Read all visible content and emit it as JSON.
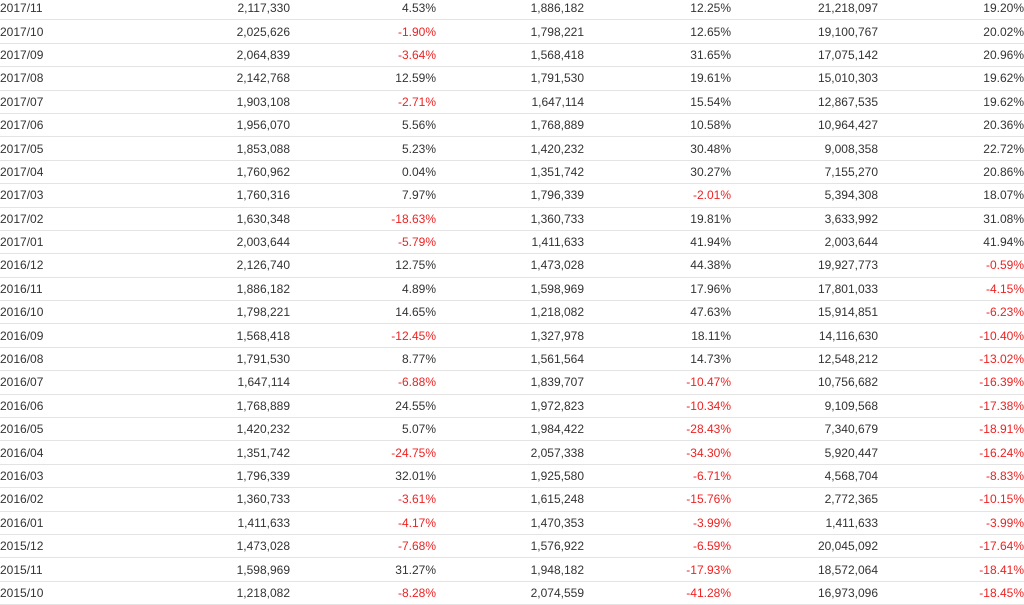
{
  "colors": {
    "text": "#333333",
    "negative": "#ee2222",
    "row_border": "#e3e3e3"
  },
  "rows": [
    [
      "2017/11",
      "2,117,330",
      "4.53%",
      "1,886,182",
      "12.25%",
      "21,218,097",
      "19.20%"
    ],
    [
      "2017/10",
      "2,025,626",
      "-1.90%",
      "1,798,221",
      "12.65%",
      "19,100,767",
      "20.02%"
    ],
    [
      "2017/09",
      "2,064,839",
      "-3.64%",
      "1,568,418",
      "31.65%",
      "17,075,142",
      "20.96%"
    ],
    [
      "2017/08",
      "2,142,768",
      "12.59%",
      "1,791,530",
      "19.61%",
      "15,010,303",
      "19.62%"
    ],
    [
      "2017/07",
      "1,903,108",
      "-2.71%",
      "1,647,114",
      "15.54%",
      "12,867,535",
      "19.62%"
    ],
    [
      "2017/06",
      "1,956,070",
      "5.56%",
      "1,768,889",
      "10.58%",
      "10,964,427",
      "20.36%"
    ],
    [
      "2017/05",
      "1,853,088",
      "5.23%",
      "1,420,232",
      "30.48%",
      "9,008,358",
      "22.72%"
    ],
    [
      "2017/04",
      "1,760,962",
      "0.04%",
      "1,351,742",
      "30.27%",
      "7,155,270",
      "20.86%"
    ],
    [
      "2017/03",
      "1,760,316",
      "7.97%",
      "1,796,339",
      "-2.01%",
      "5,394,308",
      "18.07%"
    ],
    [
      "2017/02",
      "1,630,348",
      "-18.63%",
      "1,360,733",
      "19.81%",
      "3,633,992",
      "31.08%"
    ],
    [
      "2017/01",
      "2,003,644",
      "-5.79%",
      "1,411,633",
      "41.94%",
      "2,003,644",
      "41.94%"
    ],
    [
      "2016/12",
      "2,126,740",
      "12.75%",
      "1,473,028",
      "44.38%",
      "19,927,773",
      "-0.59%"
    ],
    [
      "2016/11",
      "1,886,182",
      "4.89%",
      "1,598,969",
      "17.96%",
      "17,801,033",
      "-4.15%"
    ],
    [
      "2016/10",
      "1,798,221",
      "14.65%",
      "1,218,082",
      "47.63%",
      "15,914,851",
      "-6.23%"
    ],
    [
      "2016/09",
      "1,568,418",
      "-12.45%",
      "1,327,978",
      "18.11%",
      "14,116,630",
      "-10.40%"
    ],
    [
      "2016/08",
      "1,791,530",
      "8.77%",
      "1,561,564",
      "14.73%",
      "12,548,212",
      "-13.02%"
    ],
    [
      "2016/07",
      "1,647,114",
      "-6.88%",
      "1,839,707",
      "-10.47%",
      "10,756,682",
      "-16.39%"
    ],
    [
      "2016/06",
      "1,768,889",
      "24.55%",
      "1,972,823",
      "-10.34%",
      "9,109,568",
      "-17.38%"
    ],
    [
      "2016/05",
      "1,420,232",
      "5.07%",
      "1,984,422",
      "-28.43%",
      "7,340,679",
      "-18.91%"
    ],
    [
      "2016/04",
      "1,351,742",
      "-24.75%",
      "2,057,338",
      "-34.30%",
      "5,920,447",
      "-16.24%"
    ],
    [
      "2016/03",
      "1,796,339",
      "32.01%",
      "1,925,580",
      "-6.71%",
      "4,568,704",
      "-8.83%"
    ],
    [
      "2016/02",
      "1,360,733",
      "-3.61%",
      "1,615,248",
      "-15.76%",
      "2,772,365",
      "-10.15%"
    ],
    [
      "2016/01",
      "1,411,633",
      "-4.17%",
      "1,470,353",
      "-3.99%",
      "1,411,633",
      "-3.99%"
    ],
    [
      "2015/12",
      "1,473,028",
      "-7.68%",
      "1,576,922",
      "-6.59%",
      "20,045,092",
      "-17.64%"
    ],
    [
      "2015/11",
      "1,598,969",
      "31.27%",
      "1,948,182",
      "-17.93%",
      "18,572,064",
      "-18.41%"
    ],
    [
      "2015/10",
      "1,218,082",
      "-8.28%",
      "2,074,559",
      "-41.28%",
      "16,973,096",
      "-18.45%"
    ]
  ]
}
